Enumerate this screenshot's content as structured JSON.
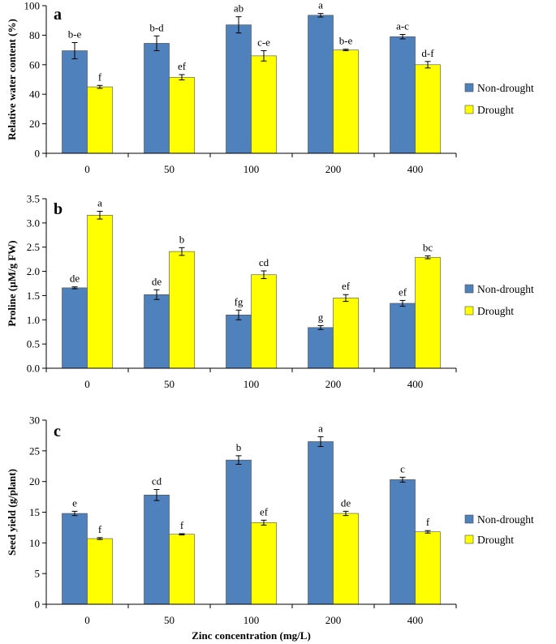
{
  "chart_data": [
    {
      "type": "bar",
      "panel_label": "a",
      "ylabel": "Relative water content  (%)",
      "xlabel": "",
      "categories": [
        "0",
        "50",
        "100",
        "200",
        "400"
      ],
      "ylim": [
        0,
        100
      ],
      "yticks": [
        "0",
        "20",
        "40",
        "60",
        "80",
        "100"
      ],
      "series": [
        {
          "name": "Non-drought",
          "color": "#4f81bd",
          "values": [
            69.5,
            74.5,
            87,
            93.5,
            79
          ],
          "errors": [
            5.5,
            5,
            5.5,
            1.2,
            1.5
          ],
          "labels": [
            "b-e",
            "b-d",
            "ab",
            "a",
            "a-c"
          ]
        },
        {
          "name": "Drought",
          "color": "#ffff00",
          "values": [
            45,
            51.5,
            66,
            70,
            60
          ],
          "errors": [
            1,
            1.8,
            3.5,
            0.5,
            2.2
          ],
          "labels": [
            "f",
            "ef",
            "c-e",
            "b-e",
            "d-f"
          ]
        }
      ],
      "legend": "right"
    },
    {
      "type": "bar",
      "panel_label": "b",
      "ylabel": "Proline (µM/g FW)",
      "xlabel": "",
      "categories": [
        "0",
        "50",
        "100",
        "200",
        "400"
      ],
      "ylim": [
        0,
        3.5
      ],
      "yticks": [
        "0.0",
        "0.5",
        "1.0",
        "1.5",
        "2.0",
        "2.5",
        "3.0",
        "3.5"
      ],
      "series": [
        {
          "name": "Non-drought",
          "color": "#4f81bd",
          "values": [
            1.66,
            1.52,
            1.1,
            0.84,
            1.34
          ],
          "errors": [
            0.02,
            0.1,
            0.1,
            0.04,
            0.06
          ],
          "labels": [
            "de",
            "de",
            "fg",
            "g",
            "ef"
          ]
        },
        {
          "name": "Drought",
          "color": "#ffff00",
          "values": [
            3.16,
            2.41,
            1.93,
            1.45,
            2.29
          ],
          "errors": [
            0.08,
            0.08,
            0.08,
            0.07,
            0.03
          ],
          "labels": [
            "a",
            "b",
            "cd",
            "ef",
            "bc"
          ]
        }
      ],
      "legend": "right"
    },
    {
      "type": "bar",
      "panel_label": "c",
      "ylabel": "Seed yield (g/plant)",
      "xlabel": "Zinc concentration (mg/L)",
      "categories": [
        "0",
        "50",
        "100",
        "200",
        "400"
      ],
      "ylim": [
        0,
        30
      ],
      "yticks": [
        "0",
        "5",
        "10",
        "15",
        "20",
        "25",
        "30"
      ],
      "series": [
        {
          "name": "Non-drought",
          "color": "#4f81bd",
          "values": [
            14.8,
            17.8,
            23.5,
            26.5,
            20.3
          ],
          "errors": [
            0.35,
            0.9,
            0.7,
            0.8,
            0.4
          ],
          "labels": [
            "e",
            "cd",
            "b",
            "a",
            "c"
          ]
        },
        {
          "name": "Drought",
          "color": "#ffff00",
          "values": [
            10.7,
            11.4,
            13.3,
            14.8,
            11.8
          ],
          "errors": [
            0.15,
            0.1,
            0.4,
            0.35,
            0.2
          ],
          "labels": [
            "f",
            "f",
            "ef",
            "de",
            "f"
          ]
        }
      ],
      "legend": "right"
    }
  ]
}
